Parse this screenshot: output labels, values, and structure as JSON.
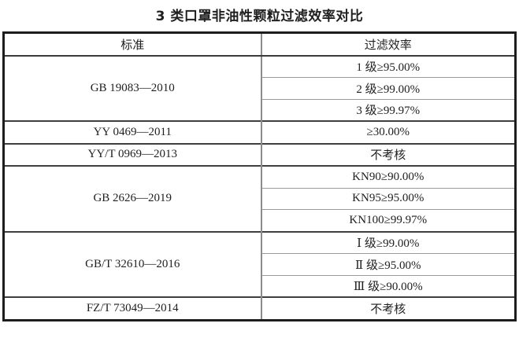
{
  "title": "3 类口罩非油性颗粒过滤效率对比",
  "table": {
    "headers": {
      "standard": "标准",
      "efficiency": "过滤效率"
    },
    "groups": [
      {
        "standard": "GB 19083—2010",
        "efficiencies": [
          "1 级≥95.00%",
          "2 级≥99.00%",
          "3 级≥99.97%"
        ]
      },
      {
        "standard": "YY 0469—2011",
        "efficiencies": [
          "≥30.00%"
        ]
      },
      {
        "standard": "YY/T 0969—2013",
        "efficiencies": [
          "不考核"
        ]
      },
      {
        "standard": "GB 2626—2019",
        "efficiencies": [
          "KN90≥90.00%",
          "KN95≥95.00%",
          "KN100≥99.97%"
        ]
      },
      {
        "standard": "GB/T 32610—2016",
        "efficiencies": [
          "Ⅰ 级≥99.00%",
          "Ⅱ 级≥95.00%",
          "Ⅲ 级≥90.00%"
        ]
      },
      {
        "standard": "FZ/T 73049—2014",
        "efficiencies": [
          "不考核"
        ]
      }
    ]
  },
  "colors": {
    "outer_border": "#1d1d1d",
    "group_separator": "#3f3f3f",
    "subrow_separator": "#9a9a9a",
    "column_divider": "#8c8c8c",
    "text": "#1f1f1f",
    "background": "#ffffff"
  }
}
